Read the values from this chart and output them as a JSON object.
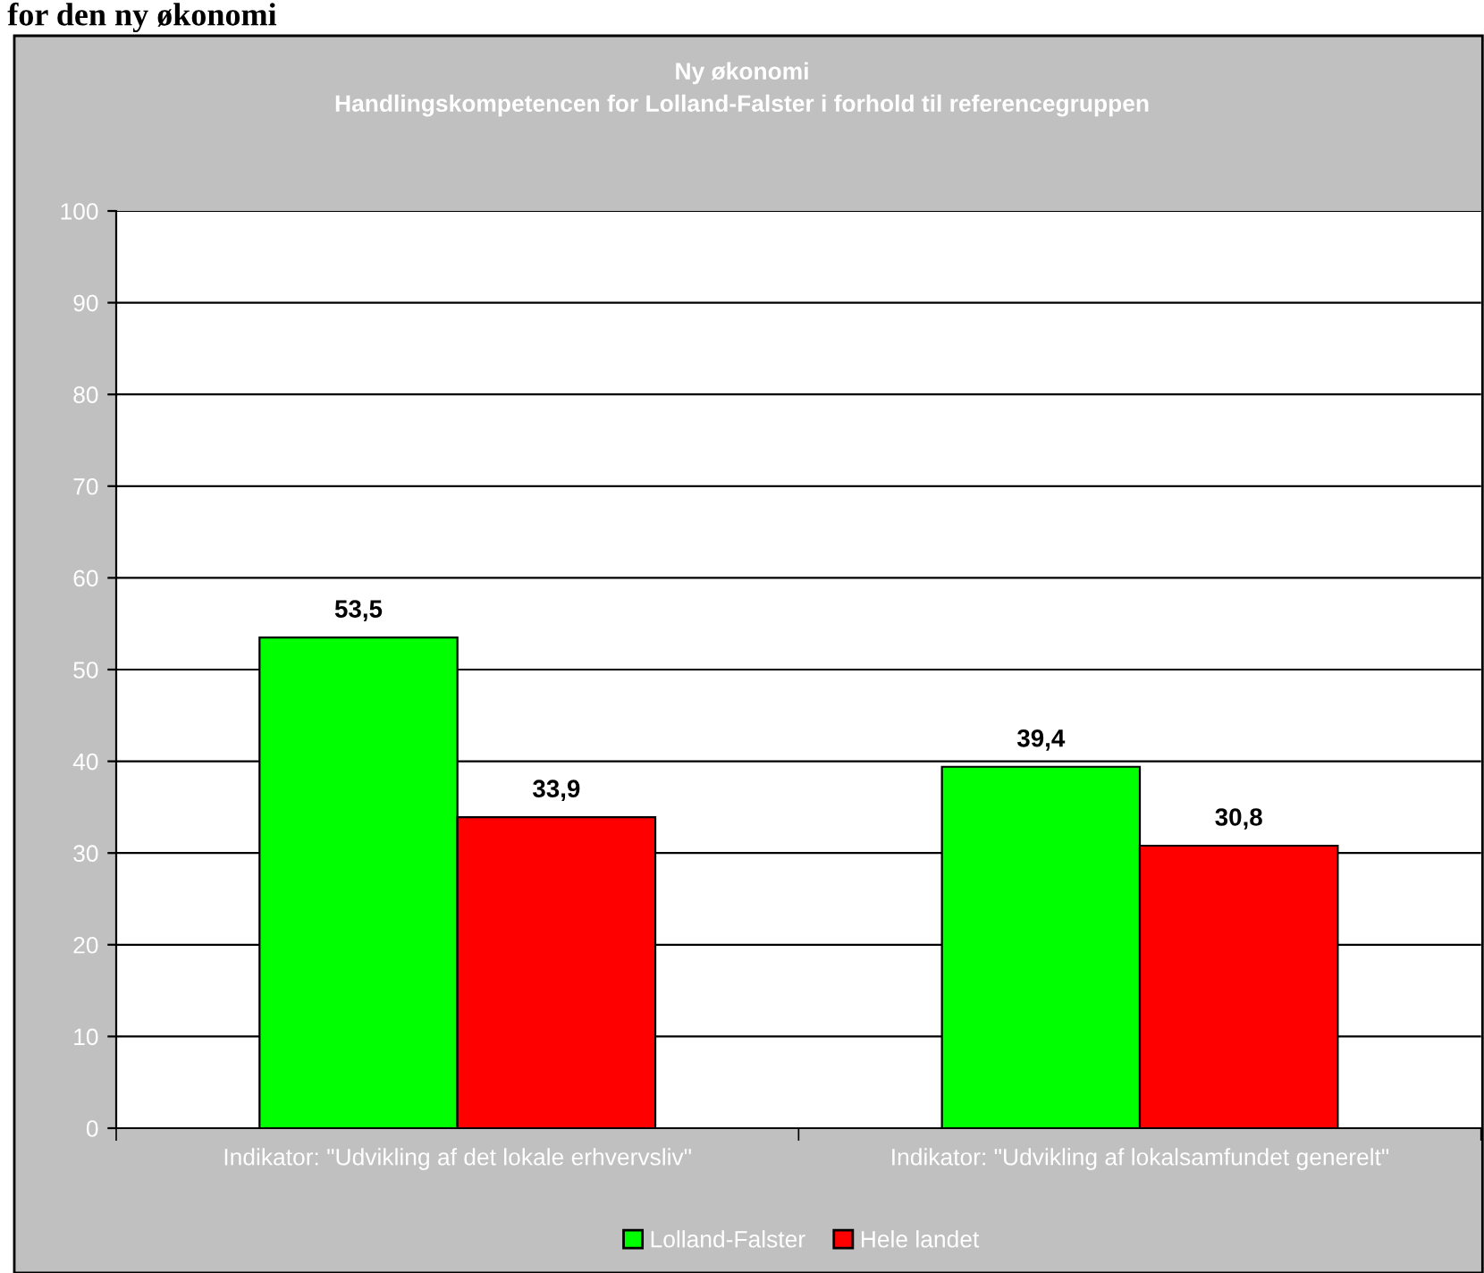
{
  "chart_data": {
    "type": "bar",
    "title": "Ny økonomi\nHandlingskompetencen for Lolland-Falster i forhold til referencegruppen",
    "annotations": [
      "for den ny økonomi"
    ],
    "categories": [
      "Indikator: \"Udvikling af det lokale erhvervsliv\"",
      "Indikator: \"Udvikling af lokalsamfundet generelt\""
    ],
    "series": [
      {
        "name": "Lolland-Falster",
        "color": "#00ff00",
        "values": [
          53.5,
          39.4
        ],
        "value_labels": [
          "53,5",
          "39,4"
        ]
      },
      {
        "name": "Hele landet",
        "color": "#ff0000",
        "values": [
          33.9,
          30.8
        ],
        "value_labels": [
          "33,9",
          "30,8"
        ]
      }
    ],
    "ylim": [
      0,
      100
    ],
    "yticks": [
      0,
      10,
      20,
      30,
      40,
      50,
      60,
      70,
      80,
      90,
      100
    ],
    "grid": "y",
    "legend": "bottom"
  }
}
